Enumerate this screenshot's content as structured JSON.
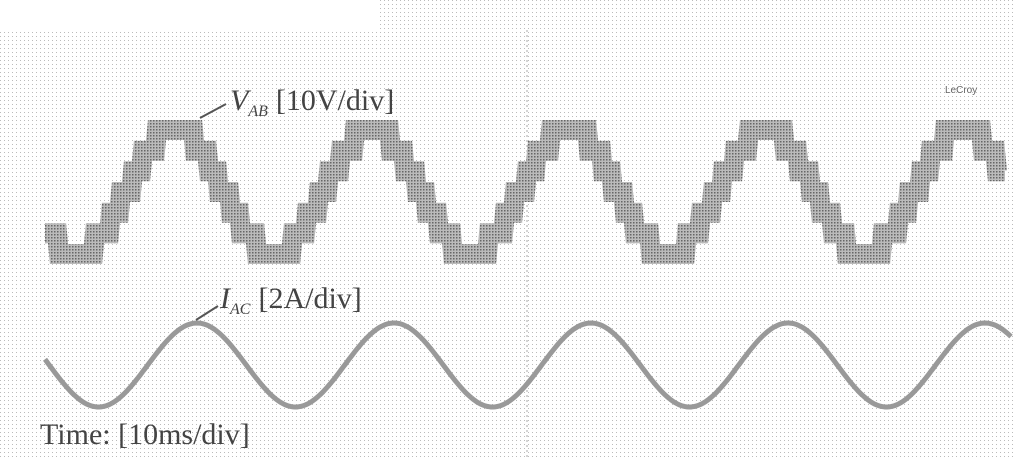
{
  "brand": "LeCroy",
  "traces": [
    {
      "symbol": "V",
      "subscript": "AB",
      "scale": "[10V/div]"
    },
    {
      "symbol": "I",
      "subscript": "AC",
      "scale": "[2A/div]"
    }
  ],
  "time_scale": "Time: [10ms/div]"
}
